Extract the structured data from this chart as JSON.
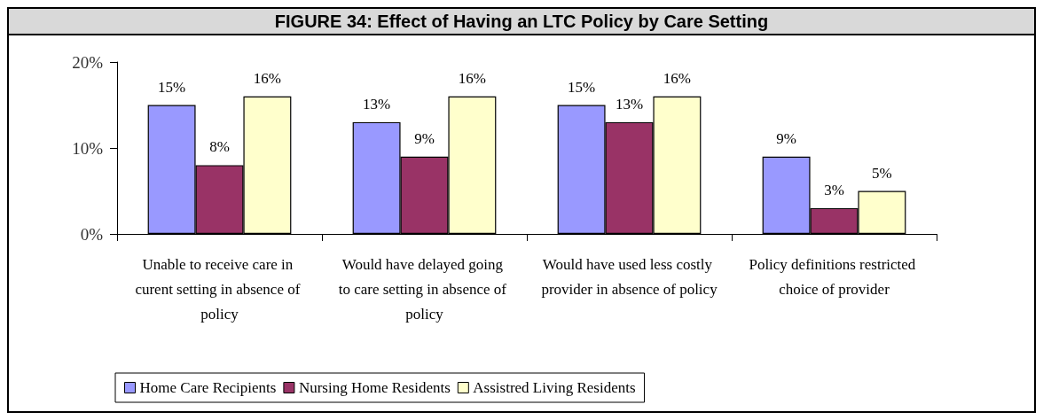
{
  "chart_data": {
    "type": "bar",
    "title": "FIGURE 34: Effect of Having an LTC Policy by Care Setting",
    "categories": [
      "Unable to receive care in curent setting in absence of policy",
      "Would have delayed going to care setting in absence of policy",
      "Would have used less costly provider in absence of policy",
      "Policy definitions restricted choice of provider"
    ],
    "series": [
      {
        "name": "Home Care Recipients",
        "color": "#9999ff",
        "values": [
          15,
          13,
          15,
          9
        ],
        "value_labels": [
          "15%",
          "13%",
          "15%",
          "9%"
        ]
      },
      {
        "name": "Nursing Home Residents",
        "color": "#993366",
        "values": [
          8,
          9,
          13,
          3
        ],
        "value_labels": [
          "8%",
          "9%",
          "13%",
          "3%"
        ]
      },
      {
        "name": "Assistred Living Residents",
        "color": "#ffffcc",
        "values": [
          16,
          16,
          16,
          5
        ],
        "value_labels": [
          "16%",
          "16%",
          "16%",
          "5%"
        ]
      }
    ],
    "ylim": [
      0,
      20
    ],
    "yticks": [
      {
        "value": 0,
        "label": "0%"
      },
      {
        "value": 10,
        "label": "10%"
      },
      {
        "value": 20,
        "label": "20%"
      }
    ],
    "grid": false,
    "legend": "bottom"
  }
}
